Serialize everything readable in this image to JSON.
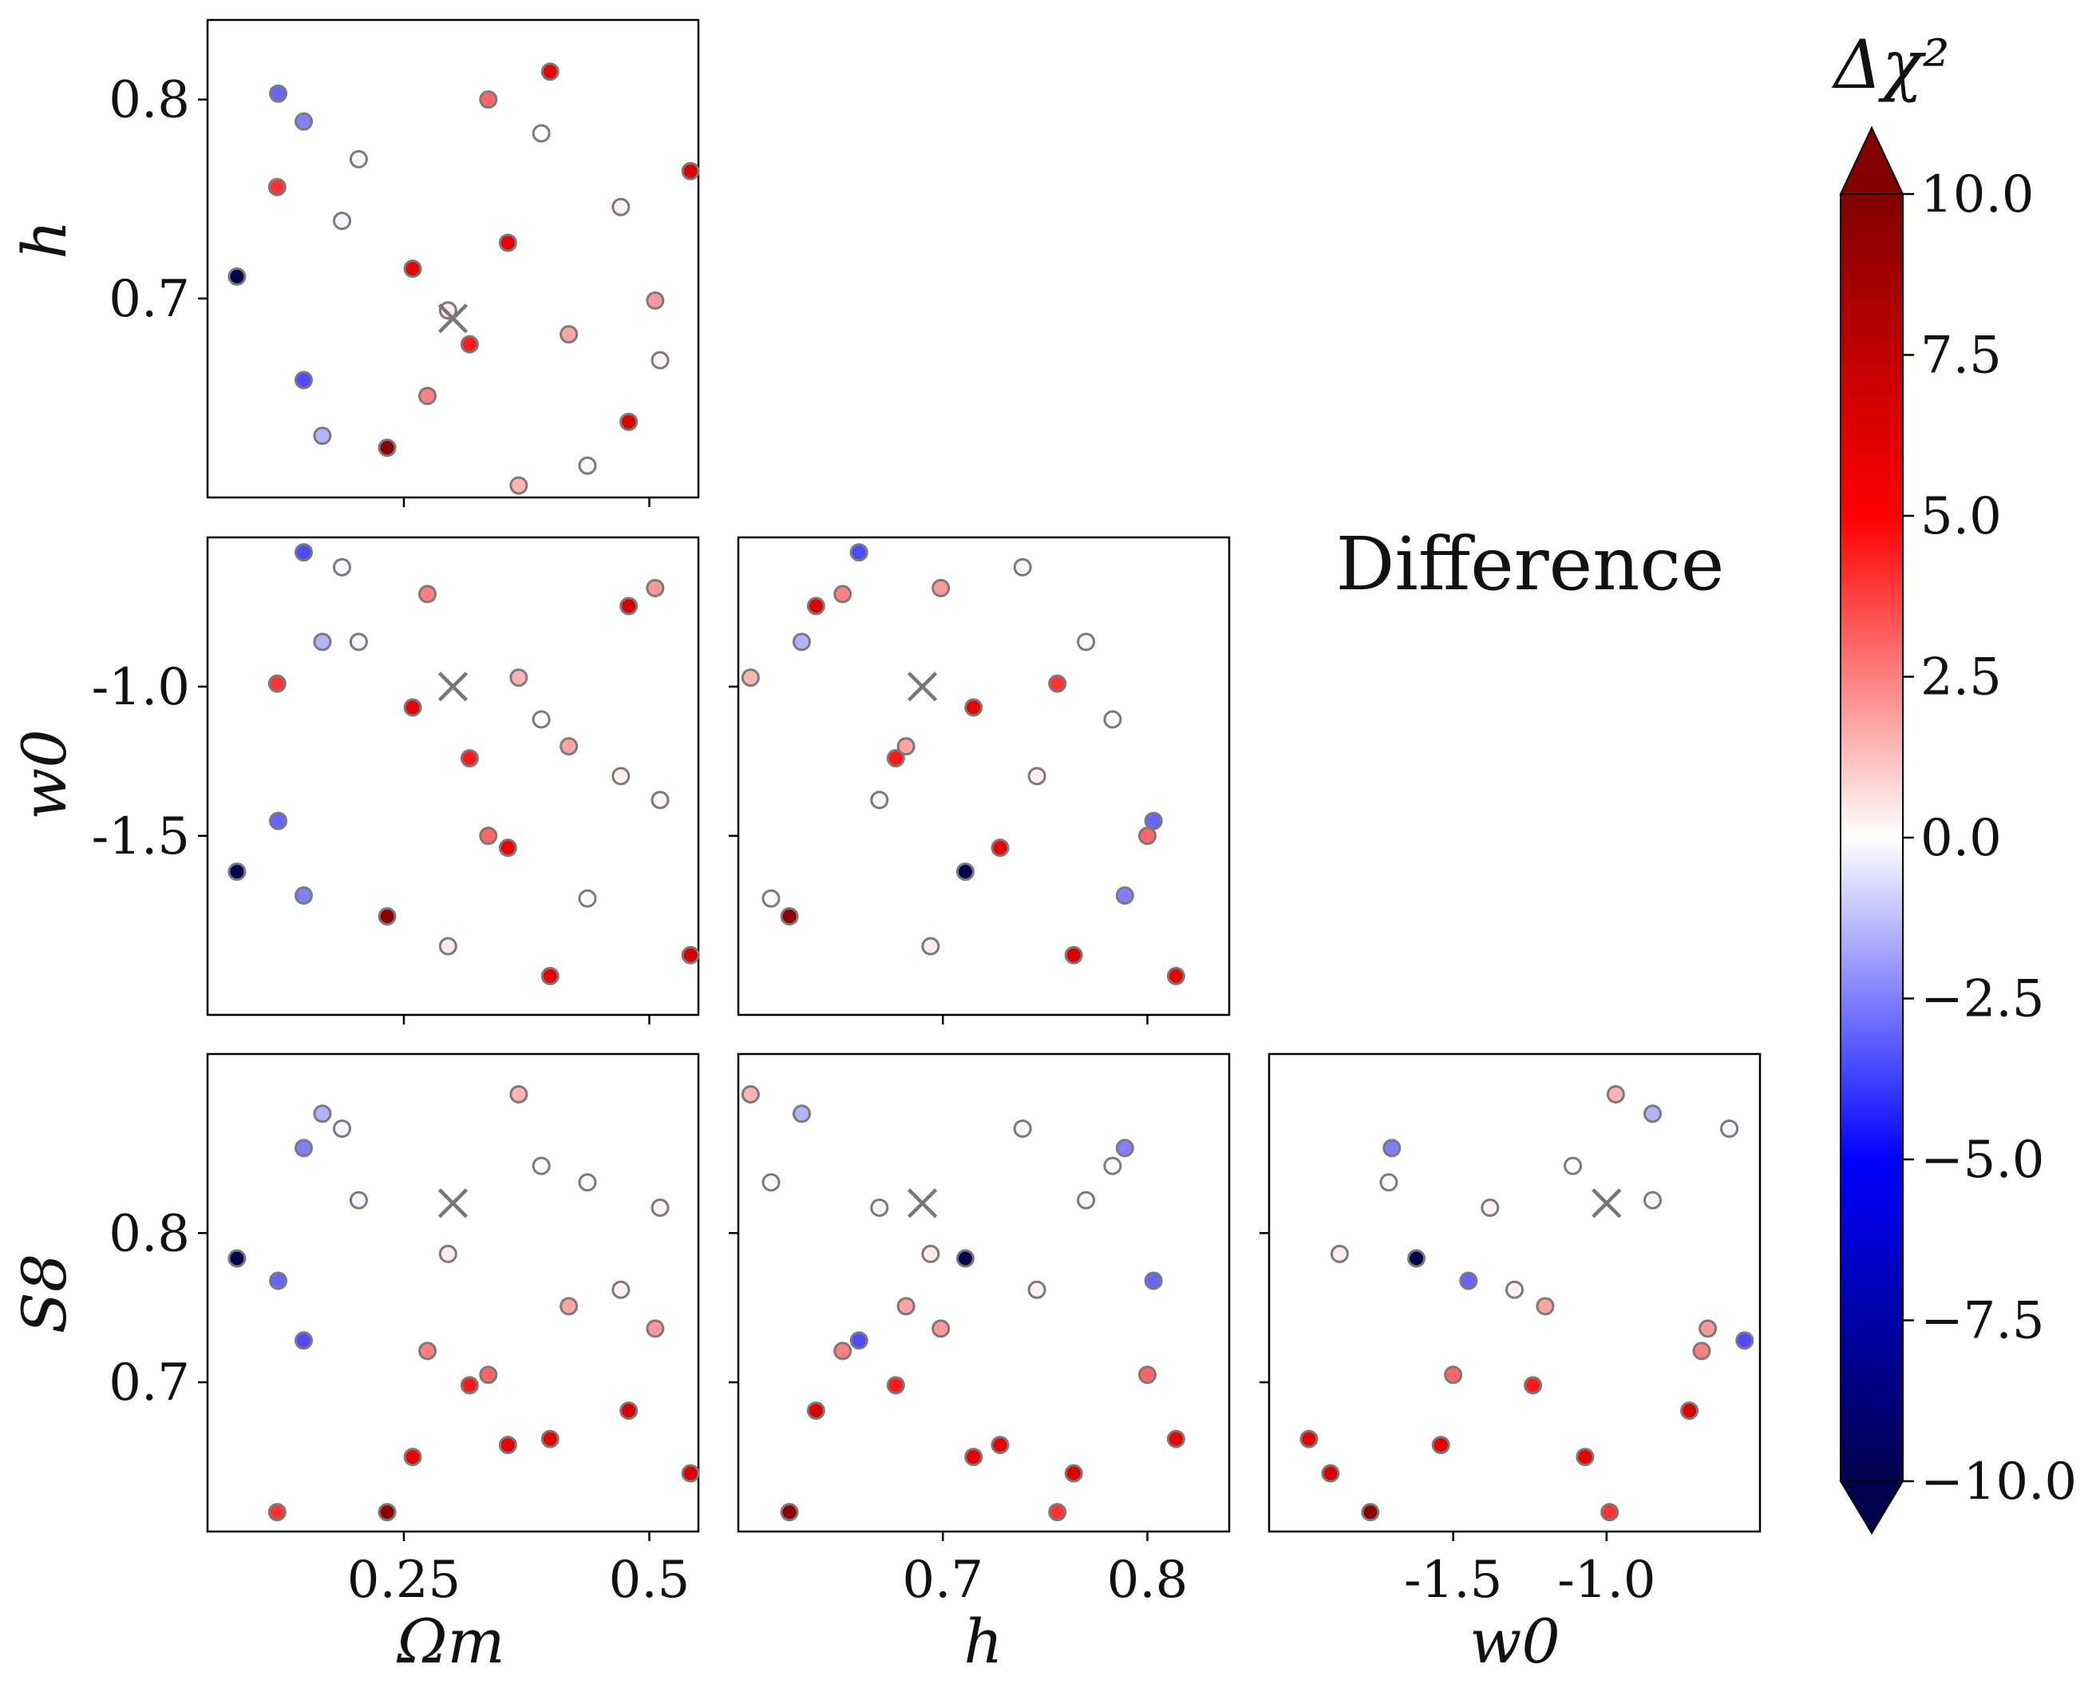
{
  "chart_data": {
    "type": "scatter",
    "annotation": "Difference",
    "fiducial": {
      "Omega_m": 0.3,
      "h": 0.69,
      "w0": -1.0,
      "S8": 0.82
    },
    "parameters": [
      {
        "key": "Omega_m",
        "label": "Ωm",
        "lim": [
          0.05,
          0.55
        ],
        "ticks": [
          0.25,
          0.5
        ],
        "tick_labels": [
          "0.25",
          "0.5"
        ]
      },
      {
        "key": "h",
        "label": "h",
        "lim": [
          0.6,
          0.84
        ],
        "ticks": [
          0.7,
          0.8
        ],
        "tick_labels": [
          "0.7",
          "0.8"
        ]
      },
      {
        "key": "w0",
        "label": "w0",
        "lim": [
          -2.1,
          -0.5
        ],
        "ticks": [
          -1.5,
          -1.0
        ],
        "tick_labels": [
          "-1.5",
          "-1.0"
        ]
      },
      {
        "key": "S8",
        "label": "S8",
        "lim": [
          0.6,
          0.92
        ],
        "ticks": [
          0.7,
          0.8
        ],
        "tick_labels": [
          "0.7",
          "0.8"
        ]
      }
    ],
    "panels": [
      {
        "x": "Omega_m",
        "y": "h",
        "show_x_ticks": false,
        "show_y_ticks": true
      },
      {
        "x": "Omega_m",
        "y": "w0",
        "show_x_ticks": false,
        "show_y_ticks": true
      },
      {
        "x": "h",
        "y": "w0",
        "show_x_ticks": false,
        "show_y_ticks": false
      },
      {
        "x": "Omega_m",
        "y": "S8",
        "show_x_ticks": true,
        "show_y_ticks": true
      },
      {
        "x": "h",
        "y": "S8",
        "show_x_ticks": true,
        "show_y_ticks": false
      },
      {
        "x": "w0",
        "y": "S8",
        "show_x_ticks": true,
        "show_y_ticks": false
      }
    ],
    "points": [
      {
        "Omega_m": 0.08,
        "h": 0.711,
        "w0": -1.62,
        "S8": 0.783,
        "dchi2": -10.0
      },
      {
        "Omega_m": 0.121,
        "h": 0.756,
        "w0": -0.99,
        "S8": 0.613,
        "dchi2": 4.0
      },
      {
        "Omega_m": 0.122,
        "h": 0.803,
        "w0": -1.45,
        "S8": 0.768,
        "dchi2": -3.0
      },
      {
        "Omega_m": 0.148,
        "h": 0.789,
        "w0": -1.7,
        "S8": 0.857,
        "dchi2": -2.5
      },
      {
        "Omega_m": 0.148,
        "h": 0.659,
        "w0": -0.55,
        "S8": 0.728,
        "dchi2": -3.5
      },
      {
        "Omega_m": 0.167,
        "h": 0.631,
        "w0": -0.85,
        "S8": 0.88,
        "dchi2": -1.5
      },
      {
        "Omega_m": 0.187,
        "h": 0.739,
        "w0": -0.6,
        "S8": 0.87,
        "dchi2": -0.2
      },
      {
        "Omega_m": 0.204,
        "h": 0.77,
        "w0": -0.85,
        "S8": 0.822,
        "dchi2": -0.2
      },
      {
        "Omega_m": 0.233,
        "h": 0.625,
        "w0": -1.77,
        "S8": 0.613,
        "dchi2": 9.5
      },
      {
        "Omega_m": 0.259,
        "h": 0.715,
        "w0": -1.07,
        "S8": 0.65,
        "dchi2": 6.0
      },
      {
        "Omega_m": 0.274,
        "h": 0.651,
        "w0": -0.69,
        "S8": 0.721,
        "dchi2": 2.5
      },
      {
        "Omega_m": 0.295,
        "h": 0.694,
        "w0": -1.87,
        "S8": 0.786,
        "dchi2": 0.4
      },
      {
        "Omega_m": 0.317,
        "h": 0.677,
        "w0": -1.24,
        "S8": 0.698,
        "dchi2": 4.5
      },
      {
        "Omega_m": 0.336,
        "h": 0.8,
        "w0": -1.5,
        "S8": 0.705,
        "dchi2": 3.0
      },
      {
        "Omega_m": 0.356,
        "h": 0.728,
        "w0": -1.54,
        "S8": 0.658,
        "dchi2": 6.0
      },
      {
        "Omega_m": 0.367,
        "h": 0.606,
        "w0": -0.97,
        "S8": 0.893,
        "dchi2": 1.5
      },
      {
        "Omega_m": 0.39,
        "h": 0.783,
        "w0": -1.11,
        "S8": 0.845,
        "dchi2": 0.0
      },
      {
        "Omega_m": 0.399,
        "h": 0.814,
        "w0": -1.97,
        "S8": 0.662,
        "dchi2": 6.0
      },
      {
        "Omega_m": 0.418,
        "h": 0.682,
        "w0": -1.2,
        "S8": 0.751,
        "dchi2": 1.8
      },
      {
        "Omega_m": 0.437,
        "h": 0.616,
        "w0": -1.71,
        "S8": 0.834,
        "dchi2": 0.1
      },
      {
        "Omega_m": 0.471,
        "h": 0.746,
        "w0": -1.3,
        "S8": 0.762,
        "dchi2": 0.3
      },
      {
        "Omega_m": 0.479,
        "h": 0.638,
        "w0": -0.73,
        "S8": 0.681,
        "dchi2": 6.5
      },
      {
        "Omega_m": 0.506,
        "h": 0.699,
        "w0": -0.67,
        "S8": 0.736,
        "dchi2": 2.0
      },
      {
        "Omega_m": 0.511,
        "h": 0.669,
        "w0": -1.38,
        "S8": 0.817,
        "dchi2": 0.2
      },
      {
        "Omega_m": 0.542,
        "h": 0.764,
        "w0": -1.9,
        "S8": 0.639,
        "dchi2": 6.5
      }
    ],
    "colorbar": {
      "title": "Δχ²",
      "cmap": "seismic",
      "vmin": -10.0,
      "vmax": 10.0,
      "extend": "both",
      "ticks": [
        10.0,
        7.5,
        5.0,
        2.5,
        0.0,
        -2.5,
        -5.0,
        -7.5,
        -10.0
      ],
      "tick_labels": [
        "10.0",
        "7.5",
        "5.0",
        "2.5",
        "0.0",
        "−2.5",
        "−5.0",
        "−7.5",
        "−10.0"
      ]
    },
    "colors": {
      "marker_edge": "#7a7a7a",
      "fiducial_marker": "#777777",
      "axes": "#000000"
    }
  }
}
